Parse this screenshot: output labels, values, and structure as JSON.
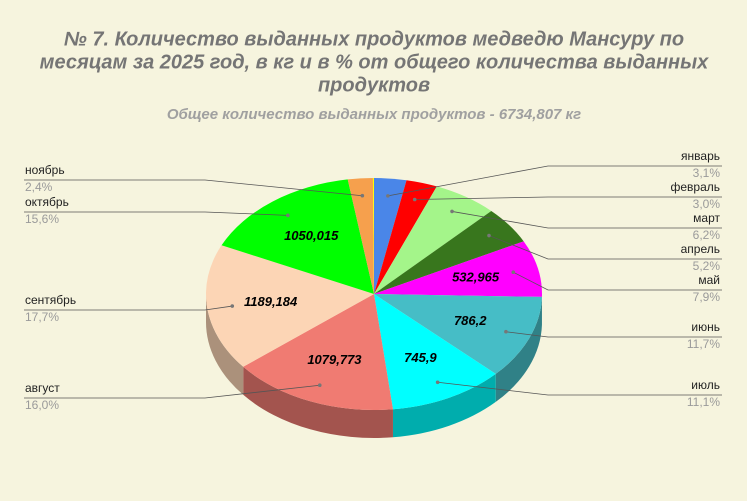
{
  "chart_data": {
    "type": "pie3d",
    "title": [
      "№ 7.    Количество выданных продуктов медведю Мансуру по",
      "месяцам за 2025 год, в кг и в % от общего количества выданных",
      "продуктов"
    ],
    "subtitle": "Общее количество выданных продуктов - 6734,807 кг",
    "categories": [
      "январь",
      "февраль",
      "март",
      "апрель",
      "май",
      "июнь",
      "июль",
      "август",
      "сентябрь",
      "октябрь",
      "ноябрь",
      null
    ],
    "values": [
      3.1,
      3.0,
      6.2,
      5.2,
      7.9,
      11.7,
      11.1,
      16.0,
      17.7,
      15.6,
      2.4,
      0.1
    ],
    "value_labels": [
      "3,1%",
      "3,0%",
      "6,2%",
      "5,2%",
      "7,9%",
      "11,7%",
      "11,1%",
      "16,0%",
      "17,7%",
      "15,6%",
      "2,4%",
      null
    ],
    "amounts": [
      null,
      null,
      null,
      null,
      532.965,
      786.2,
      745.9,
      1079.773,
      1189.184,
      1050.015,
      null,
      null
    ],
    "amount_labels": [
      null,
      null,
      null,
      null,
      "532,965",
      "786,2",
      "745,9",
      "1079,773",
      "1189,184",
      "1050,015",
      null,
      null
    ],
    "colors": [
      "#4a86e8",
      "#ff0000",
      "#a4f58a",
      "#38761d",
      "#ff00ff",
      "#46bdc6",
      "#00ffff",
      "#f07b72",
      "#fcd5b5",
      "#00ff00",
      "#f6a04d",
      "#ffff00"
    ]
  }
}
